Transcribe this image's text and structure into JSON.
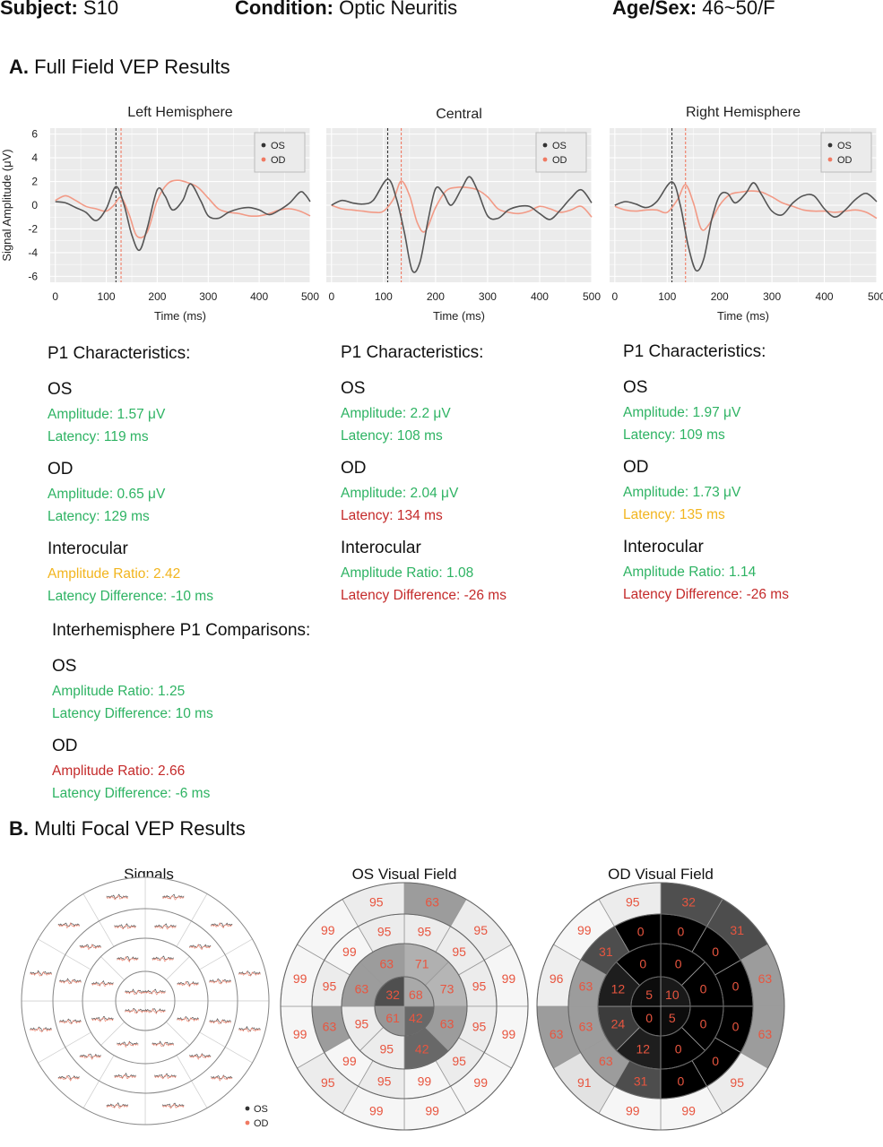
{
  "header": {
    "subject_label": "Subject:",
    "subject_value": "S10",
    "condition_label": "Condition:",
    "condition_value": "Optic Neuritis",
    "agesex_label": "Age/Sex:",
    "agesex_value": "46~50/F"
  },
  "section_a": {
    "letter": "A.",
    "title": "Full Field VEP Results"
  },
  "section_b": {
    "letter": "B.",
    "title": "Multi Focal VEP Results"
  },
  "colors": {
    "os": "#555555",
    "od": "#f29a86",
    "good": "#2eb363",
    "warn": "#f2b51e",
    "bad": "#c42a2a"
  },
  "chart_data": [
    {
      "type": "line",
      "title": "Left Hemisphere",
      "xlabel": "Time (ms)",
      "ylabel": "Signal Amplitude (μV)",
      "xlim": [
        -10,
        500
      ],
      "ylim": [
        -6.5,
        6.5
      ],
      "xticks": [
        0,
        100,
        200,
        300,
        400,
        500
      ],
      "yticks": [
        6,
        4,
        2,
        0,
        -2,
        -4,
        -6
      ],
      "legend": "top-right",
      "grid": true,
      "vlines": [
        {
          "series": "OS",
          "x": 119
        },
        {
          "series": "OD",
          "x": 129
        }
      ],
      "series": [
        {
          "name": "OS",
          "x": [
            0,
            20,
            40,
            60,
            80,
            100,
            119,
            135,
            150,
            165,
            180,
            200,
            215,
            230,
            250,
            265,
            285,
            300,
            320,
            340,
            360,
            380,
            400,
            420,
            440,
            460,
            480,
            490,
            500
          ],
          "y": [
            0.3,
            0.2,
            -0.2,
            -0.6,
            -1.3,
            -0.3,
            1.57,
            0.0,
            -2.5,
            -3.8,
            -2.0,
            1.3,
            0.8,
            -0.4,
            0.4,
            1.8,
            0.4,
            -0.9,
            -1.1,
            -0.6,
            -0.3,
            -0.2,
            -0.4,
            -0.8,
            -0.4,
            0.2,
            1.1,
            0.9,
            0.3
          ]
        },
        {
          "name": "OD",
          "x": [
            0,
            20,
            40,
            60,
            80,
            100,
            115,
            129,
            145,
            160,
            180,
            200,
            220,
            240,
            260,
            280,
            300,
            320,
            340,
            360,
            380,
            400,
            420,
            440,
            460,
            480,
            500
          ],
          "y": [
            0.4,
            0.8,
            0.4,
            -0.1,
            -0.3,
            -0.5,
            0.0,
            0.65,
            -0.8,
            -2.6,
            -2.3,
            0.4,
            1.8,
            2.1,
            1.9,
            1.5,
            0.6,
            -0.3,
            -0.6,
            -0.7,
            -0.9,
            -0.9,
            -0.7,
            -0.4,
            -0.3,
            -0.5,
            -0.9
          ]
        }
      ]
    },
    {
      "type": "line",
      "title": "Central",
      "xlabel": "Time (ms)",
      "xlim": [
        -10,
        500
      ],
      "ylim": [
        -6.5,
        6.5
      ],
      "xticks": [
        0,
        100,
        200,
        300,
        400,
        500
      ],
      "legend": "top-right",
      "grid": true,
      "vlines": [
        {
          "series": "OS",
          "x": 108
        },
        {
          "series": "OD",
          "x": 134
        }
      ],
      "series": [
        {
          "name": "OS",
          "x": [
            0,
            20,
            40,
            60,
            80,
            108,
            125,
            140,
            155,
            170,
            185,
            200,
            215,
            230,
            250,
            265,
            280,
            300,
            320,
            340,
            360,
            380,
            400,
            420,
            440,
            460,
            480,
            500
          ],
          "y": [
            0.0,
            0.4,
            0.2,
            0.1,
            0.4,
            2.2,
            0.5,
            -2.3,
            -5.5,
            -4.8,
            -1.4,
            1.4,
            1.0,
            0.0,
            1.4,
            2.4,
            1.3,
            -0.9,
            -1.1,
            -0.4,
            -0.1,
            -0.1,
            -0.7,
            -1.2,
            -0.4,
            0.6,
            1.3,
            0.2
          ]
        },
        {
          "name": "OD",
          "x": [
            0,
            20,
            40,
            60,
            80,
            100,
            120,
            134,
            150,
            165,
            180,
            200,
            220,
            240,
            260,
            280,
            300,
            320,
            340,
            360,
            380,
            400,
            420,
            440,
            460,
            480,
            500
          ],
          "y": [
            0.0,
            -0.3,
            -0.4,
            -0.5,
            -0.6,
            -0.5,
            0.6,
            2.04,
            0.8,
            -1.5,
            -2.2,
            -0.2,
            1.2,
            1.5,
            1.5,
            1.3,
            0.7,
            -0.3,
            -0.6,
            -0.7,
            -0.5,
            -0.1,
            -0.3,
            -0.6,
            -0.4,
            -0.1,
            -1.0
          ]
        }
      ]
    },
    {
      "type": "line",
      "title": "Right Hemisphere",
      "xlabel": "Time (ms)",
      "xlim": [
        -10,
        500
      ],
      "ylim": [
        -6.5,
        6.5
      ],
      "xticks": [
        0,
        100,
        200,
        300,
        400,
        500
      ],
      "legend": "top-right",
      "grid": true,
      "vlines": [
        {
          "series": "OS",
          "x": 109
        },
        {
          "series": "OD",
          "x": 135
        }
      ],
      "series": [
        {
          "name": "OS",
          "x": [
            0,
            20,
            40,
            60,
            80,
            109,
            125,
            140,
            155,
            170,
            185,
            200,
            215,
            230,
            250,
            265,
            280,
            300,
            320,
            340,
            360,
            380,
            400,
            420,
            440,
            460,
            480,
            500
          ],
          "y": [
            0.0,
            0.3,
            0.1,
            -0.2,
            0.3,
            1.97,
            0.0,
            -3.4,
            -5.5,
            -4.5,
            -1.2,
            0.8,
            1.0,
            0.2,
            1.0,
            1.9,
            0.9,
            -0.5,
            -0.8,
            0.2,
            0.8,
            0.8,
            -0.3,
            -1.0,
            -0.4,
            0.5,
            1.0,
            0.3
          ]
        },
        {
          "name": "OD",
          "x": [
            0,
            20,
            40,
            60,
            80,
            100,
            120,
            135,
            150,
            165,
            180,
            200,
            220,
            240,
            260,
            280,
            300,
            320,
            340,
            360,
            380,
            400,
            420,
            440,
            460,
            480,
            500
          ],
          "y": [
            -0.1,
            -0.4,
            -0.5,
            -0.4,
            -0.4,
            -0.6,
            0.5,
            1.73,
            0.2,
            -2.0,
            -1.6,
            0.0,
            0.9,
            1.1,
            1.2,
            1.1,
            0.7,
            0.2,
            -0.1,
            -0.4,
            -0.5,
            -0.5,
            -0.6,
            -0.5,
            -0.4,
            -0.6,
            -1.1
          ]
        }
      ]
    }
  ],
  "p1": [
    {
      "heading": "P1 Characteristics:",
      "os_label": "OS",
      "os_amp": "Amplitude: 1.57 μV",
      "os_lat": "Latency: 119 ms",
      "od_label": "OD",
      "od_amp": "Amplitude: 0.65 μV",
      "od_lat": "Latency: 129 ms",
      "io_label": "Interocular",
      "io_ratio": "Amplitude Ratio: 2.42",
      "io_diff": "Latency Difference: -10 ms"
    },
    {
      "heading": "P1 Characteristics:",
      "os_label": "OS",
      "os_amp": "Amplitude: 2.2 μV",
      "os_lat": "Latency: 108 ms",
      "od_label": "OD",
      "od_amp": "Amplitude: 2.04 μV",
      "od_lat": "Latency: 134 ms",
      "io_label": "Interocular",
      "io_ratio": "Amplitude Ratio: 1.08",
      "io_diff": "Latency Difference: -26 ms"
    },
    {
      "heading": "P1 Characteristics:",
      "os_label": "OS",
      "os_amp": "Amplitude: 1.97 μV",
      "os_lat": "Latency: 109 ms",
      "od_label": "OD",
      "od_amp": "Amplitude: 1.73 μV",
      "od_lat": "Latency: 135 ms",
      "io_label": "Interocular",
      "io_ratio": "Amplitude Ratio: 1.14",
      "io_diff": "Latency Difference: -26 ms"
    }
  ],
  "interhemi": {
    "heading": "Interhemisphere P1 Comparisons:",
    "os_label": "OS",
    "os_ratio": "Amplitude Ratio: 1.25",
    "os_diff": "Latency Difference: 10 ms",
    "od_label": "OD",
    "od_ratio": "Amplitude Ratio: 2.66",
    "od_diff": "Latency Difference: -6 ms"
  },
  "multifocal": {
    "signals_title": "Signals",
    "os_title": "OS Visual Field",
    "od_title": "OD Visual Field",
    "legend_os": "OS",
    "legend_od": "OD",
    "os_field": {
      "ring1": [
        68,
        42,
        61,
        32
      ],
      "ring2": [
        71,
        73,
        63,
        42,
        95,
        95,
        63,
        63
      ],
      "ring3": [
        95,
        95,
        95,
        95,
        95,
        99,
        95,
        99,
        63,
        95,
        99,
        95
      ],
      "ring4": [
        63,
        95,
        99,
        99,
        99,
        99,
        99,
        95,
        99,
        99,
        99,
        95
      ]
    },
    "od_field": {
      "ring1": [
        10,
        5,
        0,
        5
      ],
      "ring2": [
        0,
        0,
        0,
        0,
        12,
        24,
        12,
        0
      ],
      "ring3": [
        0,
        0,
        0,
        0,
        0,
        0,
        31,
        63,
        63,
        63,
        31,
        0
      ],
      "ring4": [
        32,
        31,
        63,
        63,
        95,
        99,
        99,
        91,
        63,
        96,
        99,
        95
      ]
    }
  }
}
